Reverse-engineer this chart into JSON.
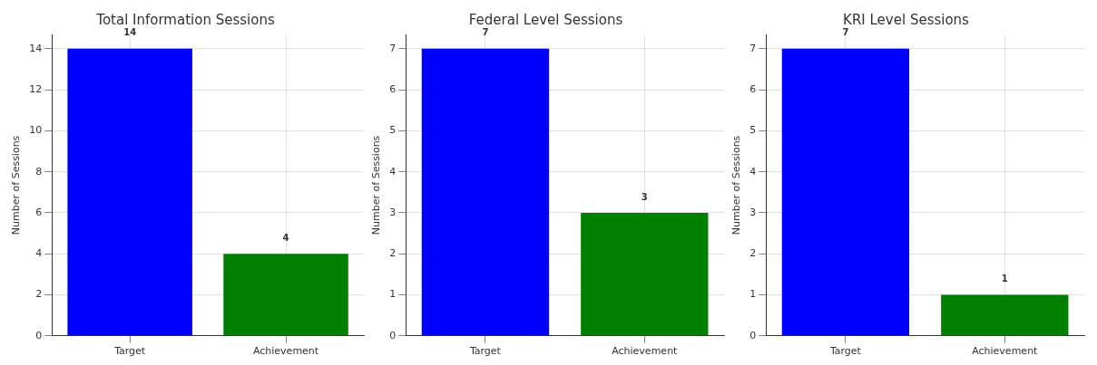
{
  "chart_data": [
    {
      "type": "bar",
      "title": "Total Information Sessions",
      "ylabel": "Number of Sessions",
      "categories": [
        "Target",
        "Achievement"
      ],
      "values": [
        14,
        4
      ],
      "colors": [
        "#0000ff",
        "#008000"
      ],
      "ylim": [
        0,
        14.7
      ],
      "yticks": [
        0,
        2,
        4,
        6,
        8,
        10,
        12,
        14
      ],
      "grid": true,
      "data_labels": true,
      "legend": false
    },
    {
      "type": "bar",
      "title": "Federal Level Sessions",
      "ylabel": "Number of Sessions",
      "categories": [
        "Target",
        "Achievement"
      ],
      "values": [
        7,
        3
      ],
      "colors": [
        "#0000ff",
        "#008000"
      ],
      "ylim": [
        0,
        7.35
      ],
      "yticks": [
        0,
        1,
        2,
        3,
        4,
        5,
        6,
        7
      ],
      "grid": true,
      "data_labels": true,
      "legend": false
    },
    {
      "type": "bar",
      "title": "KRI Level Sessions",
      "ylabel": "Number of Sessions",
      "categories": [
        "Target",
        "Achievement"
      ],
      "values": [
        7,
        1
      ],
      "colors": [
        "#0000ff",
        "#008000"
      ],
      "ylim": [
        0,
        7.35
      ],
      "yticks": [
        0,
        1,
        2,
        3,
        4,
        5,
        6,
        7
      ],
      "grid": true,
      "data_labels": true,
      "legend": false
    }
  ]
}
